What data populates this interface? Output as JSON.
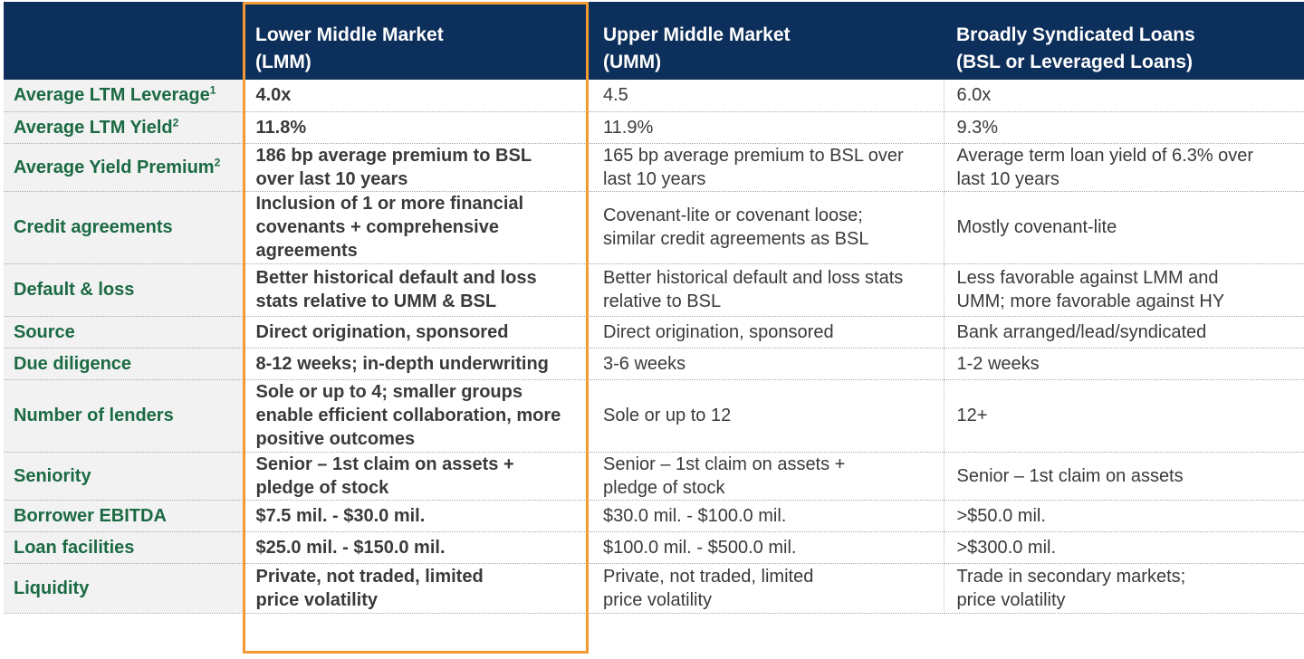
{
  "headers": {
    "lmm": [
      "Lower Middle Market",
      "(LMM)"
    ],
    "umm": [
      "Upper Middle Market",
      "(UMM)"
    ],
    "bsl": [
      "Broadly Syndicated Loans",
      "(BSL or Leveraged Loans)"
    ]
  },
  "rows": [
    {
      "label": "Average LTM Leverage",
      "sup": "1",
      "lmm": "4.0x",
      "umm": "4.5",
      "bsl": "6.0x"
    },
    {
      "label": "Average LTM Yield",
      "sup": "2",
      "lmm": "11.8%",
      "umm": "11.9%",
      "bsl": "9.3%"
    },
    {
      "label": "Average Yield Premium",
      "sup": "2",
      "lmm": [
        "186 bp average premium to BSL",
        "over last 10 years"
      ],
      "umm": [
        "165 bp average premium to BSL over",
        "last 10 years"
      ],
      "bsl": [
        "Average term loan yield of 6.3% over",
        "last 10 years"
      ]
    },
    {
      "label": "Credit agreements",
      "lmm": [
        "Inclusion of 1 or more financial",
        "covenants + comprehensive",
        "agreements"
      ],
      "umm": [
        "Covenant-lite or covenant loose;",
        "similar credit agreements as BSL"
      ],
      "bsl": "Mostly covenant-lite"
    },
    {
      "label": "Default & loss",
      "lmm": [
        "Better historical default and loss",
        "stats relative to UMM & BSL"
      ],
      "umm": [
        "Better historical default and loss stats",
        "relative to BSL"
      ],
      "bsl": [
        "Less favorable against LMM and",
        "UMM; more favorable against HY"
      ]
    },
    {
      "label": "Source",
      "lmm": "Direct origination, sponsored",
      "umm": "Direct origination, sponsored",
      "bsl": "Bank arranged/lead/syndicated"
    },
    {
      "label": "Due diligence",
      "lmm": "8-12 weeks; in-depth underwriting",
      "umm": "3-6 weeks",
      "bsl": "1-2 weeks"
    },
    {
      "label": "Number of lenders",
      "lmm": [
        "Sole or up to 4; smaller groups",
        "enable efficient collaboration, more",
        "positive outcomes"
      ],
      "umm": "Sole or up to 12",
      "bsl": "12+"
    },
    {
      "label": "Seniority",
      "lmm": [
        "Senior – 1st claim on assets +",
        "pledge of stock"
      ],
      "umm": [
        "Senior – 1st claim on assets +",
        "pledge of stock"
      ],
      "bsl": "Senior – 1st claim on assets"
    },
    {
      "label": "Borrower EBITDA",
      "lmm": "$7.5 mil. - $30.0 mil.",
      "umm": "$30.0 mil. - $100.0 mil.",
      "bsl": ">$50.0 mil."
    },
    {
      "label": "Loan facilities",
      "lmm": "$25.0 mil. - $150.0 mil.",
      "umm": "$100.0 mil. - $500.0 mil.",
      "bsl": ">$300.0 mil."
    },
    {
      "label": "Liquidity",
      "lmm": [
        "Private, not traded, limited",
        "price volatility"
      ],
      "umm": [
        "Private, not traded, limited",
        "price volatility"
      ],
      "bsl": [
        "Trade in secondary markets;",
        "price volatility"
      ]
    }
  ],
  "colors": {
    "header_bg": "#0d2f5b",
    "label_green": "#1b6a43",
    "highlight": "#f39a35"
  }
}
